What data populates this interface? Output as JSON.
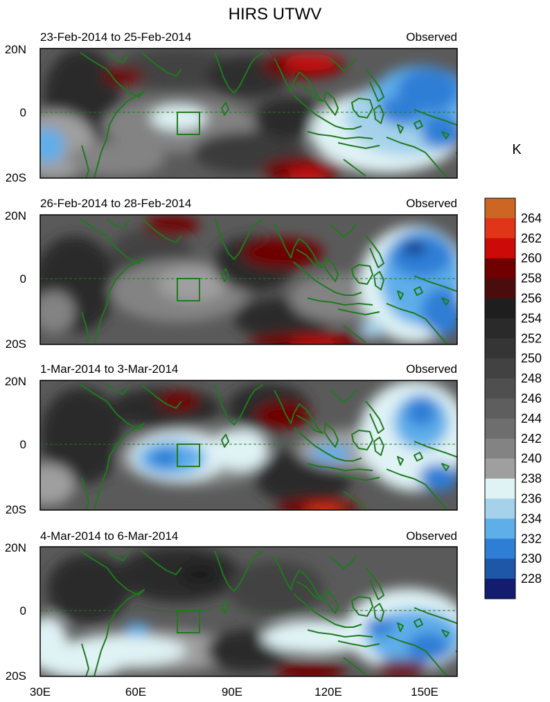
{
  "figure": {
    "title": "HIRS UTWV",
    "units_label": "K",
    "lon_ticks": [
      "30E",
      "60E",
      "90E",
      "120E",
      "150E"
    ],
    "lat_ticks": [
      "20N",
      "0",
      "20S"
    ],
    "panels": [
      {
        "date_range": "23-Feb-2014 to 25-Feb-2014",
        "kind": "Observed"
      },
      {
        "date_range": "26-Feb-2014 to 28-Feb-2014",
        "kind": "Observed"
      },
      {
        "date_range": "1-Mar-2014 to 3-Mar-2014",
        "kind": "Observed"
      },
      {
        "date_range": "4-Mar-2014 to 6-Mar-2014",
        "kind": "Observed"
      }
    ]
  },
  "colorbar": {
    "levels": [
      "264",
      "262",
      "260",
      "258",
      "256",
      "254",
      "252",
      "250",
      "248",
      "246",
      "244",
      "242",
      "240",
      "238",
      "236",
      "234",
      "232",
      "230",
      "228"
    ],
    "colors": [
      "#cc6622",
      "#e03518",
      "#cc0a08",
      "#700000",
      "#4a0c0c",
      "#1e1e1e",
      "#2a2a2a",
      "#353535",
      "#424242",
      "#4f4f4f",
      "#5e5e5e",
      "#6e6e6e",
      "#838383",
      "#9f9f9f",
      "#dff2f4",
      "#a5d2ea",
      "#5eaeea",
      "#2f7ed6",
      "#1e56a8",
      "#141c70"
    ]
  },
  "colors": {
    "coast": "#1e7a1e",
    "background_field": "#5a5a5a"
  }
}
